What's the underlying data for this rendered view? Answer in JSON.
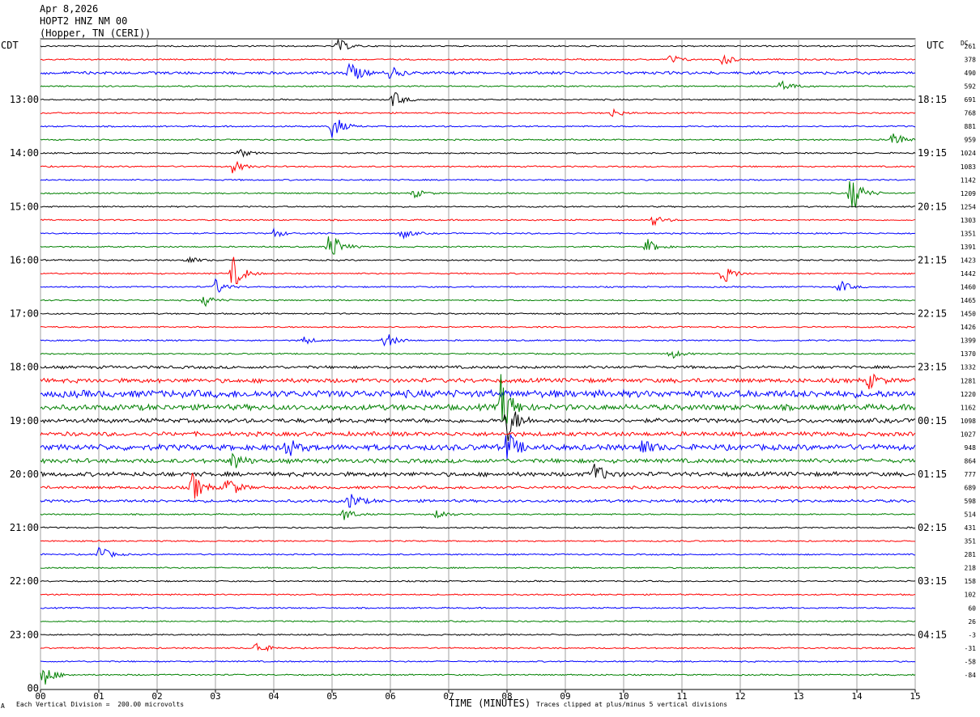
{
  "header": {
    "date": "Apr 8,2026",
    "station": "HOPT2 HNZ NM 00",
    "location": "(Hopper, TN (CERI))"
  },
  "left_tz": "CDT",
  "right_tz": "UTC",
  "dc_label": "DC",
  "footer": {
    "scale_note": "Each Vertical Division =  200.00 microvolts",
    "clip_note": "Traces clipped at plus/minus 5 vertical divisions",
    "corner_mark": "A"
  },
  "colors": {
    "trace_cycle": [
      "#000000",
      "#ff0000",
      "#0000ff",
      "#008000"
    ],
    "grid": "#a0a0a0"
  },
  "chart_data": {
    "type": "line",
    "title": "",
    "xlabel": "TIME (MINUTES)",
    "xlim": [
      0,
      15
    ],
    "x_ticks": [
      "00",
      "01",
      "02",
      "03",
      "04",
      "05",
      "06",
      "07",
      "08",
      "09",
      "10",
      "11",
      "12",
      "13",
      "14",
      "15"
    ],
    "left_time_labels": [
      {
        "label": "13:00",
        "trace": 4
      },
      {
        "label": "14:00",
        "trace": 8
      },
      {
        "label": "15:00",
        "trace": 12
      },
      {
        "label": "16:00",
        "trace": 16
      },
      {
        "label": "17:00",
        "trace": 20
      },
      {
        "label": "18:00",
        "trace": 24
      },
      {
        "label": "19:00",
        "trace": 28
      },
      {
        "label": "20:00",
        "trace": 32
      },
      {
        "label": "21:00",
        "trace": 36
      },
      {
        "label": "22:00",
        "trace": 40
      },
      {
        "label": "23:00",
        "trace": 44
      },
      {
        "label": "00",
        "trace": 48
      }
    ],
    "right_time_labels": [
      {
        "label": "18:15",
        "trace": 4
      },
      {
        "label": "19:15",
        "trace": 8
      },
      {
        "label": "20:15",
        "trace": 12
      },
      {
        "label": "21:15",
        "trace": 16
      },
      {
        "label": "22:15",
        "trace": 20
      },
      {
        "label": "23:15",
        "trace": 24
      },
      {
        "label": "00:15",
        "trace": 28
      },
      {
        "label": "01:15",
        "trace": 32
      },
      {
        "label": "02:15",
        "trace": 36
      },
      {
        "label": "03:15",
        "trace": 40
      },
      {
        "label": "04:15",
        "trace": 44
      }
    ],
    "dc_offsets": [
      "261",
      "378",
      "490",
      "592",
      "691",
      "768",
      "881",
      "959",
      "1024",
      "1083",
      "1142",
      "1209",
      "1254",
      "1303",
      "1351",
      "1391",
      "1423",
      "1442",
      "1460",
      "1465",
      "1450",
      "1426",
      "1399",
      "1370",
      "1332",
      "1281",
      "1220",
      "1162",
      "1098",
      "1027",
      "948",
      "864",
      "777",
      "689",
      "598",
      "514",
      "431",
      "351",
      "281",
      "218",
      "158",
      "102",
      "60",
      "26",
      "-3",
      "-31",
      "-58",
      "-84"
    ],
    "trace_count": 48,
    "noise": [
      1,
      1,
      2,
      1,
      1,
      1,
      1,
      1,
      1,
      1,
      1,
      1,
      1,
      1,
      1,
      1,
      1,
      1,
      1,
      1,
      1,
      1,
      1,
      1,
      2,
      3,
      5,
      4,
      3,
      3,
      4,
      3,
      3,
      2,
      2,
      1,
      1,
      1,
      1,
      1,
      1,
      1,
      1,
      1,
      1,
      1,
      1,
      1
    ],
    "events": [
      {
        "trace": 0,
        "minute": 5.1,
        "amp": 10
      },
      {
        "trace": 2,
        "minute": 5.3,
        "amp": 16
      },
      {
        "trace": 2,
        "minute": 6.0,
        "amp": 8
      },
      {
        "trace": 1,
        "minute": 10.8,
        "amp": 7
      },
      {
        "trace": 1,
        "minute": 11.7,
        "amp": 8
      },
      {
        "trace": 3,
        "minute": 12.7,
        "amp": 9
      },
      {
        "trace": 4,
        "minute": 6.05,
        "amp": 11
      },
      {
        "trace": 6,
        "minute": 5.0,
        "amp": 18
      },
      {
        "trace": 5,
        "minute": 9.8,
        "amp": 6
      },
      {
        "trace": 7,
        "minute": 14.6,
        "amp": 13
      },
      {
        "trace": 8,
        "minute": 3.4,
        "amp": 6
      },
      {
        "trace": 9,
        "minute": 3.3,
        "amp": 9
      },
      {
        "trace": 11,
        "minute": 6.4,
        "amp": 6
      },
      {
        "trace": 11,
        "minute": 13.9,
        "amp": 30
      },
      {
        "trace": 13,
        "minute": 10.5,
        "amp": 7
      },
      {
        "trace": 14,
        "minute": 4.0,
        "amp": 6
      },
      {
        "trace": 14,
        "minute": 6.2,
        "amp": 7
      },
      {
        "trace": 15,
        "minute": 4.95,
        "amp": 25
      },
      {
        "trace": 15,
        "minute": 10.4,
        "amp": 10
      },
      {
        "trace": 16,
        "minute": 2.5,
        "amp": 6
      },
      {
        "trace": 17,
        "minute": 3.3,
        "amp": 22
      },
      {
        "trace": 17,
        "minute": 11.7,
        "amp": 14
      },
      {
        "trace": 18,
        "minute": 3.0,
        "amp": 10
      },
      {
        "trace": 18,
        "minute": 13.7,
        "amp": 9
      },
      {
        "trace": 19,
        "minute": 2.8,
        "amp": 8
      },
      {
        "trace": 22,
        "minute": 5.9,
        "amp": 12
      },
      {
        "trace": 22,
        "minute": 4.5,
        "amp": 6
      },
      {
        "trace": 23,
        "minute": 10.8,
        "amp": 7
      },
      {
        "trace": 25,
        "minute": 14.2,
        "amp": 10
      },
      {
        "trace": 27,
        "minute": 7.9,
        "amp": 40
      },
      {
        "trace": 28,
        "minute": 8.0,
        "amp": 28
      },
      {
        "trace": 30,
        "minute": 4.2,
        "amp": 14
      },
      {
        "trace": 30,
        "minute": 10.3,
        "amp": 10
      },
      {
        "trace": 30,
        "minute": 8.0,
        "amp": 20
      },
      {
        "trace": 31,
        "minute": 3.3,
        "amp": 12
      },
      {
        "trace": 32,
        "minute": 9.5,
        "amp": 14
      },
      {
        "trace": 33,
        "minute": 2.6,
        "amp": 20
      },
      {
        "trace": 33,
        "minute": 3.2,
        "amp": 16
      },
      {
        "trace": 34,
        "minute": 5.3,
        "amp": 12
      },
      {
        "trace": 35,
        "minute": 5.2,
        "amp": 9
      },
      {
        "trace": 35,
        "minute": 6.8,
        "amp": 7
      },
      {
        "trace": 38,
        "minute": 1.0,
        "amp": 12
      },
      {
        "trace": 45,
        "minute": 3.7,
        "amp": 9
      },
      {
        "trace": 47,
        "minute": 0.05,
        "amp": 16
      }
    ]
  }
}
